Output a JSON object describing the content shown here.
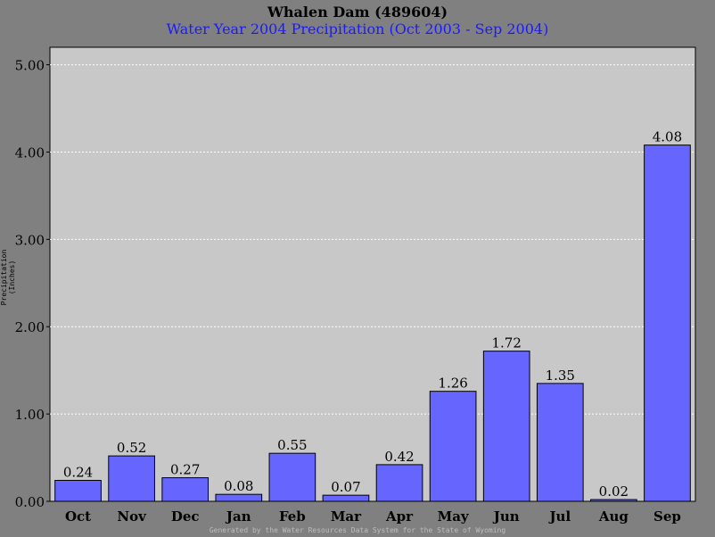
{
  "chart_data": {
    "type": "bar",
    "title": "Whalen Dam (489604)",
    "subtitle": "Water Year 2004 Precipitation (Oct 2003 - Sep 2004)",
    "xlabel": "",
    "ylabel": "Precipitation (Inches)",
    "categories": [
      "Oct",
      "Nov",
      "Dec",
      "Jan",
      "Feb",
      "Mar",
      "Apr",
      "May",
      "Jun",
      "Jul",
      "Aug",
      "Sep"
    ],
    "values": [
      0.24,
      0.52,
      0.27,
      0.08,
      0.55,
      0.07,
      0.42,
      1.26,
      1.72,
      1.35,
      0.02,
      4.08
    ],
    "value_labels": [
      "0.24",
      "0.52",
      "0.27",
      "0.08",
      "0.55",
      "0.07",
      "0.42",
      "1.26",
      "1.72",
      "1.35",
      "0.02",
      "4.08"
    ],
    "ylim": [
      0,
      5.2
    ],
    "yticks": [
      0,
      1,
      2,
      3,
      4,
      5
    ],
    "ytick_labels": [
      "0.00",
      "1.00",
      "2.00",
      "3.00",
      "4.00",
      "5.00"
    ],
    "grid": true,
    "legend": "none",
    "colors": {
      "bar": "#6666ff",
      "plot_background": "#c8c8c8",
      "page_background": "#808080",
      "grid": "#ffffff",
      "subtitle": "#1a1aff"
    }
  },
  "footer": "Generated by the Water Resources Data System for the State of Wyoming"
}
